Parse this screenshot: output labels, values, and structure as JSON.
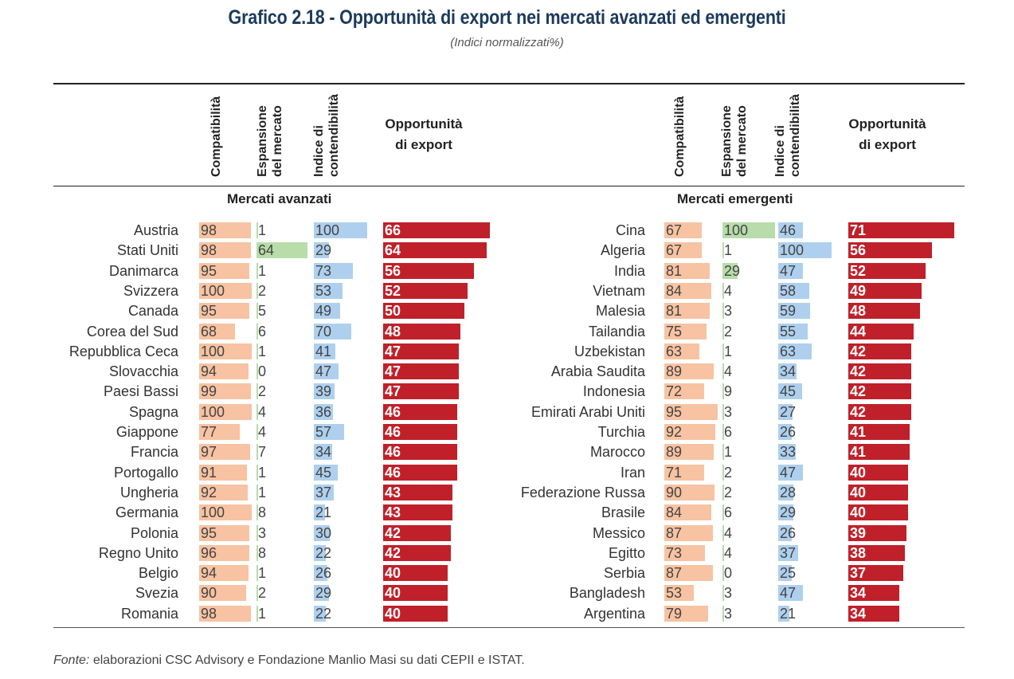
{
  "title": "Grafico 2.18 - Opportunità di export nei mercati avanzati ed emergenti",
  "subtitle": "(Indici normalizzati%)",
  "columns": {
    "compatibility": "Compatibilità",
    "expansion_1": "Espansione",
    "expansion_2": "del mercato",
    "contestability_1": "Indice di",
    "contestability_2": "contendibilità",
    "opportunity_1": "Opportunità",
    "opportunity_2": "di export"
  },
  "footer": {
    "label": "Fonte:",
    "text": "elaborazioni CSC Advisory e Fondazione Manlio Masi su dati CEPII e ISTAT."
  },
  "colors": {
    "compatibility": "#f7c3a2",
    "expansion": "#b8dcaa",
    "contestability": "#aed0ee",
    "opportunity": "#c0202a",
    "title": "#1c3a5c"
  },
  "chart_data": [
    {
      "type": "table",
      "group": "Mercati avanzati",
      "series_keys": [
        "compatibility",
        "expansion",
        "contestability",
        "opportunity"
      ],
      "rows": [
        {
          "country": "Austria",
          "compatibility": 98,
          "expansion": 1,
          "contestability": 100,
          "opportunity": 66
        },
        {
          "country": "Stati Uniti",
          "compatibility": 98,
          "expansion": 64,
          "contestability": 29,
          "opportunity": 64
        },
        {
          "country": "Danimarca",
          "compatibility": 95,
          "expansion": 1,
          "contestability": 73,
          "opportunity": 56
        },
        {
          "country": "Svizzera",
          "compatibility": 100,
          "expansion": 2,
          "contestability": 53,
          "opportunity": 52
        },
        {
          "country": "Canada",
          "compatibility": 95,
          "expansion": 5,
          "contestability": 49,
          "opportunity": 50
        },
        {
          "country": "Corea del Sud",
          "compatibility": 68,
          "expansion": 6,
          "contestability": 70,
          "opportunity": 48
        },
        {
          "country": "Repubblica Ceca",
          "compatibility": 100,
          "expansion": 1,
          "contestability": 41,
          "opportunity": 47
        },
        {
          "country": "Slovacchia",
          "compatibility": 94,
          "expansion": 0,
          "contestability": 47,
          "opportunity": 47
        },
        {
          "country": "Paesi Bassi",
          "compatibility": 99,
          "expansion": 2,
          "contestability": 39,
          "opportunity": 47
        },
        {
          "country": "Spagna",
          "compatibility": 100,
          "expansion": 4,
          "contestability": 36,
          "opportunity": 46
        },
        {
          "country": "Giappone",
          "compatibility": 77,
          "expansion": 4,
          "contestability": 57,
          "opportunity": 46
        },
        {
          "country": "Francia",
          "compatibility": 97,
          "expansion": 7,
          "contestability": 34,
          "opportunity": 46
        },
        {
          "country": "Portogallo",
          "compatibility": 91,
          "expansion": 1,
          "contestability": 45,
          "opportunity": 46
        },
        {
          "country": "Ungheria",
          "compatibility": 92,
          "expansion": 1,
          "contestability": 37,
          "opportunity": 43
        },
        {
          "country": "Germania",
          "compatibility": 100,
          "expansion": 8,
          "contestability": 21,
          "opportunity": 43
        },
        {
          "country": "Polonia",
          "compatibility": 95,
          "expansion": 3,
          "contestability": 30,
          "opportunity": 42
        },
        {
          "country": "Regno Unito",
          "compatibility": 96,
          "expansion": 8,
          "contestability": 22,
          "opportunity": 42
        },
        {
          "country": "Belgio",
          "compatibility": 94,
          "expansion": 1,
          "contestability": 26,
          "opportunity": 40
        },
        {
          "country": "Svezia",
          "compatibility": 90,
          "expansion": 2,
          "contestability": 29,
          "opportunity": 40
        },
        {
          "country": "Romania",
          "compatibility": 98,
          "expansion": 1,
          "contestability": 22,
          "opportunity": 40
        }
      ]
    },
    {
      "type": "table",
      "group": "Mercati emergenti",
      "series_keys": [
        "compatibility",
        "expansion",
        "contestability",
        "opportunity"
      ],
      "rows": [
        {
          "country": "Cina",
          "compatibility": 67,
          "expansion": 100,
          "contestability": 46,
          "opportunity": 71
        },
        {
          "country": "Algeria",
          "compatibility": 67,
          "expansion": 1,
          "contestability": 100,
          "opportunity": 56
        },
        {
          "country": "India",
          "compatibility": 81,
          "expansion": 29,
          "contestability": 47,
          "opportunity": 52
        },
        {
          "country": "Vietnam",
          "compatibility": 84,
          "expansion": 4,
          "contestability": 58,
          "opportunity": 49
        },
        {
          "country": "Malesia",
          "compatibility": 81,
          "expansion": 3,
          "contestability": 59,
          "opportunity": 48
        },
        {
          "country": "Tailandia",
          "compatibility": 75,
          "expansion": 2,
          "contestability": 55,
          "opportunity": 44
        },
        {
          "country": "Uzbekistan",
          "compatibility": 63,
          "expansion": 1,
          "contestability": 63,
          "opportunity": 42
        },
        {
          "country": "Arabia Saudita",
          "compatibility": 89,
          "expansion": 4,
          "contestability": 34,
          "opportunity": 42
        },
        {
          "country": "Indonesia",
          "compatibility": 72,
          "expansion": 9,
          "contestability": 45,
          "opportunity": 42
        },
        {
          "country": "Emirati Arabi Uniti",
          "compatibility": 95,
          "expansion": 3,
          "contestability": 27,
          "opportunity": 42
        },
        {
          "country": "Turchia",
          "compatibility": 92,
          "expansion": 6,
          "contestability": 26,
          "opportunity": 41
        },
        {
          "country": "Marocco",
          "compatibility": 89,
          "expansion": 1,
          "contestability": 33,
          "opportunity": 41
        },
        {
          "country": "Iran",
          "compatibility": 71,
          "expansion": 2,
          "contestability": 47,
          "opportunity": 40
        },
        {
          "country": "Federazione Russa",
          "compatibility": 90,
          "expansion": 2,
          "contestability": 28,
          "opportunity": 40
        },
        {
          "country": "Brasile",
          "compatibility": 84,
          "expansion": 6,
          "contestability": 29,
          "opportunity": 40
        },
        {
          "country": "Messico",
          "compatibility": 87,
          "expansion": 4,
          "contestability": 26,
          "opportunity": 39
        },
        {
          "country": "Egitto",
          "compatibility": 73,
          "expansion": 4,
          "contestability": 37,
          "opportunity": 38
        },
        {
          "country": "Serbia",
          "compatibility": 87,
          "expansion": 0,
          "contestability": 25,
          "opportunity": 37
        },
        {
          "country": "Bangladesh",
          "compatibility": 53,
          "expansion": 3,
          "contestability": 47,
          "opportunity": 34
        },
        {
          "country": "Argentina",
          "compatibility": 79,
          "expansion": 3,
          "contestability": 21,
          "opportunity": 34
        }
      ]
    }
  ]
}
